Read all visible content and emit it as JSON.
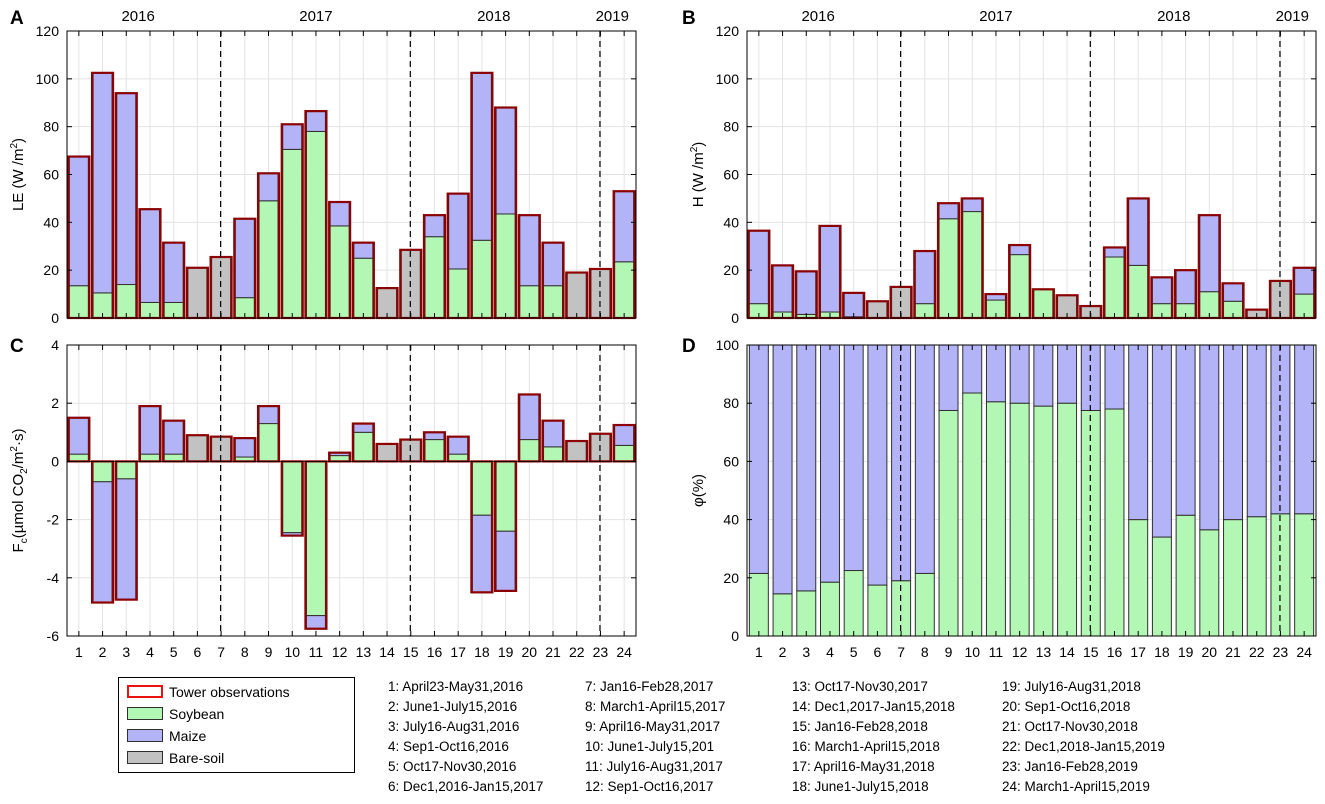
{
  "chart_data": [
    {
      "type": "bar",
      "panel_label": "A",
      "ylabel": "LE (W /m²)",
      "ylabel_main": "LE (W /m",
      "ylabel_sup": "2",
      "ylabel_end": ")",
      "ylim": [
        0,
        120
      ],
      "yticks": [
        0,
        20,
        40,
        60,
        80,
        100,
        120
      ],
      "grid": true,
      "years": [
        "2016",
        "2017",
        "2018",
        "2019"
      ],
      "tower": [
        67.5,
        102.5,
        94,
        45.5,
        31.5,
        21,
        25.5,
        41.5,
        60.5,
        81,
        86.5,
        48.5,
        31.5,
        12.5,
        28.5,
        43,
        52,
        102.5,
        88,
        43,
        31.5,
        19,
        20.5,
        53
      ],
      "soybean": [
        13.5,
        10.5,
        14,
        6.5,
        6.5,
        0,
        0,
        8.5,
        49,
        70.5,
        78,
        38.5,
        25,
        0,
        0,
        34,
        20.5,
        32.5,
        43.5,
        13.5,
        13.5,
        0,
        0,
        23.5
      ],
      "maize": [
        54,
        92,
        80,
        39,
        25,
        0,
        0,
        33,
        11.5,
        10.5,
        8.5,
        10,
        6.5,
        0,
        0,
        9,
        31.5,
        70,
        44.5,
        29.5,
        18,
        0,
        0,
        29.5
      ],
      "bare_soil": [
        0,
        0,
        0,
        0,
        0,
        21,
        25.5,
        0,
        0,
        0,
        0,
        0,
        0,
        12.5,
        28.5,
        0,
        0,
        0,
        0,
        0,
        0,
        19,
        20.5,
        0
      ]
    },
    {
      "type": "bar",
      "panel_label": "B",
      "ylabel": "H (W /m²)",
      "ylabel_main": "H (W /m",
      "ylabel_sup": "2",
      "ylabel_end": ")",
      "ylim": [
        0,
        120
      ],
      "yticks": [
        0,
        20,
        40,
        60,
        80,
        100,
        120
      ],
      "grid": true,
      "years": [
        "2016",
        "2017",
        "2018",
        "2019"
      ],
      "tower": [
        36.5,
        22,
        19.5,
        38.5,
        10.5,
        7,
        13,
        28,
        48,
        50,
        10,
        30.5,
        12,
        9.5,
        5,
        29.5,
        50,
        17,
        20,
        43,
        14.5,
        3.5,
        15.5,
        21
      ],
      "soybean": [
        6,
        2.5,
        1.5,
        2.5,
        0.5,
        0,
        0,
        6,
        41.5,
        44.5,
        7.5,
        26.5,
        12,
        0,
        0,
        25.5,
        22,
        6,
        6,
        11,
        7,
        0,
        0,
        10
      ],
      "maize": [
        30.5,
        19.5,
        18,
        36,
        10,
        0,
        0,
        22,
        6.5,
        5.5,
        2.5,
        4,
        0,
        0,
        0,
        4,
        28,
        11,
        14,
        32,
        7.5,
        0,
        0,
        11
      ],
      "bare_soil": [
        0,
        0,
        0,
        0,
        0,
        7,
        13,
        0,
        0,
        0,
        0,
        0,
        0,
        9.5,
        5,
        0,
        0,
        0,
        0,
        0,
        0,
        3.5,
        15.5,
        0
      ]
    },
    {
      "type": "bar",
      "panel_label": "C",
      "ylabel": "Fc(µmol CO2/m²·s)",
      "ylabel_f": "F",
      "ylabel_fsub": "c",
      "ylabel_mid": "(µmol CO",
      "ylabel_co2sub": "2",
      "ylabel_m": "/m",
      "ylabel_m2sup": "2",
      "ylabel_end": "·s)",
      "ylim": [
        -6,
        4
      ],
      "yticks": [
        -6,
        -4,
        -2,
        0,
        2,
        4
      ],
      "grid": true,
      "tower": [
        1.5,
        -4.85,
        -4.75,
        1.9,
        1.4,
        0.9,
        0.85,
        0.8,
        1.9,
        -2.55,
        -5.75,
        0.3,
        1.3,
        0.6,
        0.75,
        1.0,
        0.85,
        -4.5,
        -4.45,
        2.3,
        1.4,
        0.7,
        0.95,
        1.25
      ],
      "soybean": [
        0.25,
        -0.7,
        -0.6,
        0.25,
        0.25,
        0,
        0,
        0.15,
        1.3,
        -2.45,
        -5.3,
        0.2,
        1.0,
        0,
        0,
        0.75,
        0.25,
        -1.85,
        -2.4,
        0.75,
        0.5,
        0,
        0,
        0.55
      ],
      "maize": [
        1.25,
        -4.15,
        -4.15,
        1.65,
        1.15,
        0,
        0,
        0.65,
        0.6,
        -0.1,
        -0.45,
        0.1,
        0.3,
        0,
        0,
        0.25,
        0.6,
        -2.65,
        -2.05,
        1.55,
        0.9,
        0,
        0,
        0.7
      ],
      "bare_soil": [
        0,
        0,
        0,
        0,
        0,
        0.9,
        0.85,
        0,
        0,
        0,
        0,
        0,
        0,
        0.6,
        0.75,
        0,
        0,
        0,
        0,
        0,
        0,
        0.7,
        0.95,
        0
      ]
    },
    {
      "type": "bar",
      "panel_label": "D",
      "ylabel": "φ(%)",
      "ylim": [
        0,
        100
      ],
      "yticks": [
        0,
        20,
        40,
        60,
        80,
        100
      ],
      "grid": true,
      "soybean": [
        21.5,
        14.5,
        15.5,
        18.5,
        22.5,
        17.5,
        19,
        21.5,
        77.5,
        83.5,
        80.5,
        80,
        79,
        80,
        77.5,
        78,
        40,
        34,
        41.5,
        36.5,
        40,
        41,
        42,
        42
      ],
      "maize": [
        78.5,
        85.5,
        84.5,
        81.5,
        77.5,
        82.5,
        81,
        78.5,
        22.5,
        16.5,
        19.5,
        20,
        21,
        20,
        22.5,
        22,
        60,
        66,
        58.5,
        63.5,
        60,
        59,
        58,
        58
      ]
    }
  ],
  "categories": [
    "1",
    "2",
    "3",
    "4",
    "5",
    "6",
    "7",
    "8",
    "9",
    "10",
    "11",
    "12",
    "13",
    "14",
    "15",
    "16",
    "17",
    "18",
    "19",
    "20",
    "21",
    "22",
    "23",
    "24"
  ],
  "colors": {
    "soybean": "#b3f7b4",
    "maize": "#b3b3f7",
    "bare_soil": "#c2c2c2",
    "tower": "#8b0000",
    "bar_edge": "#303030",
    "legend_tower": "#ee1111",
    "grid": "#e3e3e3",
    "divider": "#000000"
  },
  "legend": {
    "tower": "Tower observations",
    "soybean": "Soybean",
    "maize": "Maize",
    "bare_soil": "Bare-soil"
  },
  "period_key": [
    "1:  April23-May31,2016",
    "2:  June1-July15,2016",
    "3:  July16-Aug31,2016",
    "4:  Sep1-Oct16,2016",
    "5:  Oct17-Nov30,2016",
    "6:  Dec1,2016-Jan15,2017",
    "7:  Jan16-Feb28,2017",
    "8:  March1-April15,2017",
    "9:  April16-May31,2017",
    "10: June1-July15,201",
    "11: July16-Aug31,2017",
    "12: Sep1-Oct16,2017",
    "13: Oct17-Nov30,2017",
    "14: Dec1,2017-Jan15,2018",
    "15: Jan16-Feb28,2018",
    "16: March1-April15,2018",
    "17: April16-May31,2018",
    "18: June1-July15,2018",
    "19: July16-Aug31,2018",
    "20: Sep1-Oct16,2018",
    "21: Oct17-Nov30,2018",
    "22: Dec1,2018-Jan15,2019",
    "23: Jan16-Feb28,2019",
    "24: March1-April15,2019"
  ]
}
